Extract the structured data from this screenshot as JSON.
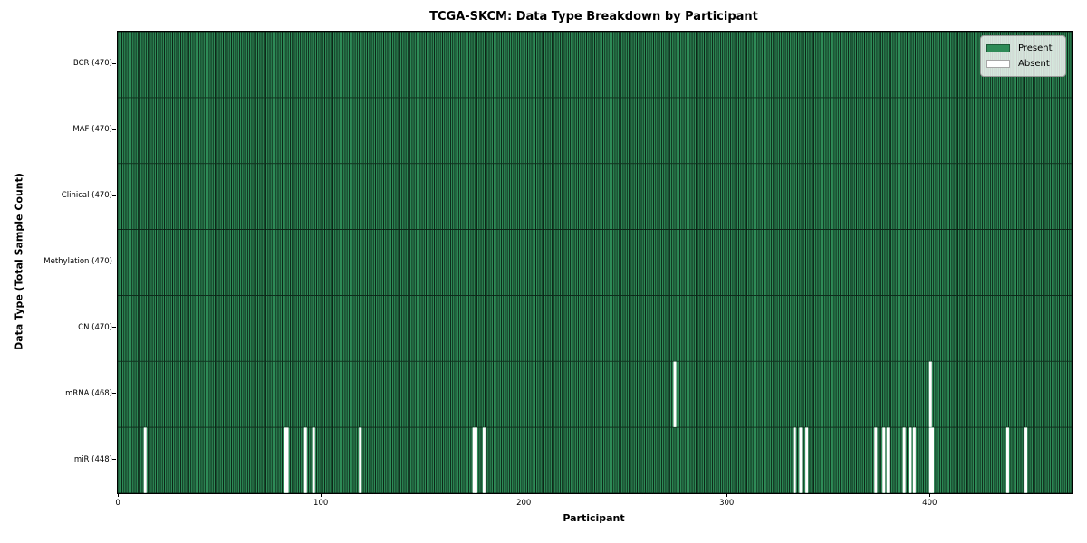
{
  "chart_data": {
    "type": "heatmap",
    "title": "TCGA-SKCM: Data Type Breakdown by Participant",
    "xlabel": "Participant",
    "ylabel": "Data Type (Total Sample Count)",
    "x_ticks": [
      0,
      100,
      200,
      300,
      400
    ],
    "x_range": [
      0,
      470
    ],
    "n_participants": 470,
    "rows": [
      {
        "label": "BCR (470)",
        "data_type": "BCR",
        "total_samples": 470,
        "absent_participants": []
      },
      {
        "label": "MAF (470)",
        "data_type": "MAF",
        "total_samples": 470,
        "absent_participants": []
      },
      {
        "label": "Clinical (470)",
        "data_type": "Clinical",
        "total_samples": 470,
        "absent_participants": []
      },
      {
        "label": "Methylation (470)",
        "data_type": "Methylation",
        "total_samples": 470,
        "absent_participants": []
      },
      {
        "label": "CN (470)",
        "data_type": "CN",
        "total_samples": 470,
        "absent_participants": []
      },
      {
        "label": "mRNA (468)",
        "data_type": "mRNA",
        "total_samples": 468,
        "absent_participants": [
          274,
          400
        ]
      },
      {
        "label": "miR (448)",
        "data_type": "miR",
        "total_samples": 448,
        "absent_participants": [
          13,
          82,
          83,
          92,
          96,
          119,
          175,
          176,
          180,
          333,
          336,
          339,
          373,
          377,
          379,
          387,
          390,
          392,
          400,
          401,
          438,
          447
        ]
      }
    ],
    "legend": {
      "position": "upper right",
      "entries": [
        {
          "label": "Present",
          "color": "#2e8b57"
        },
        {
          "label": "Absent",
          "color": "#ffffff"
        }
      ]
    },
    "colors": {
      "present": "#2e8b57",
      "absent": "#ffffff",
      "cell_edge": "#000000",
      "background": "#ffffff"
    }
  }
}
